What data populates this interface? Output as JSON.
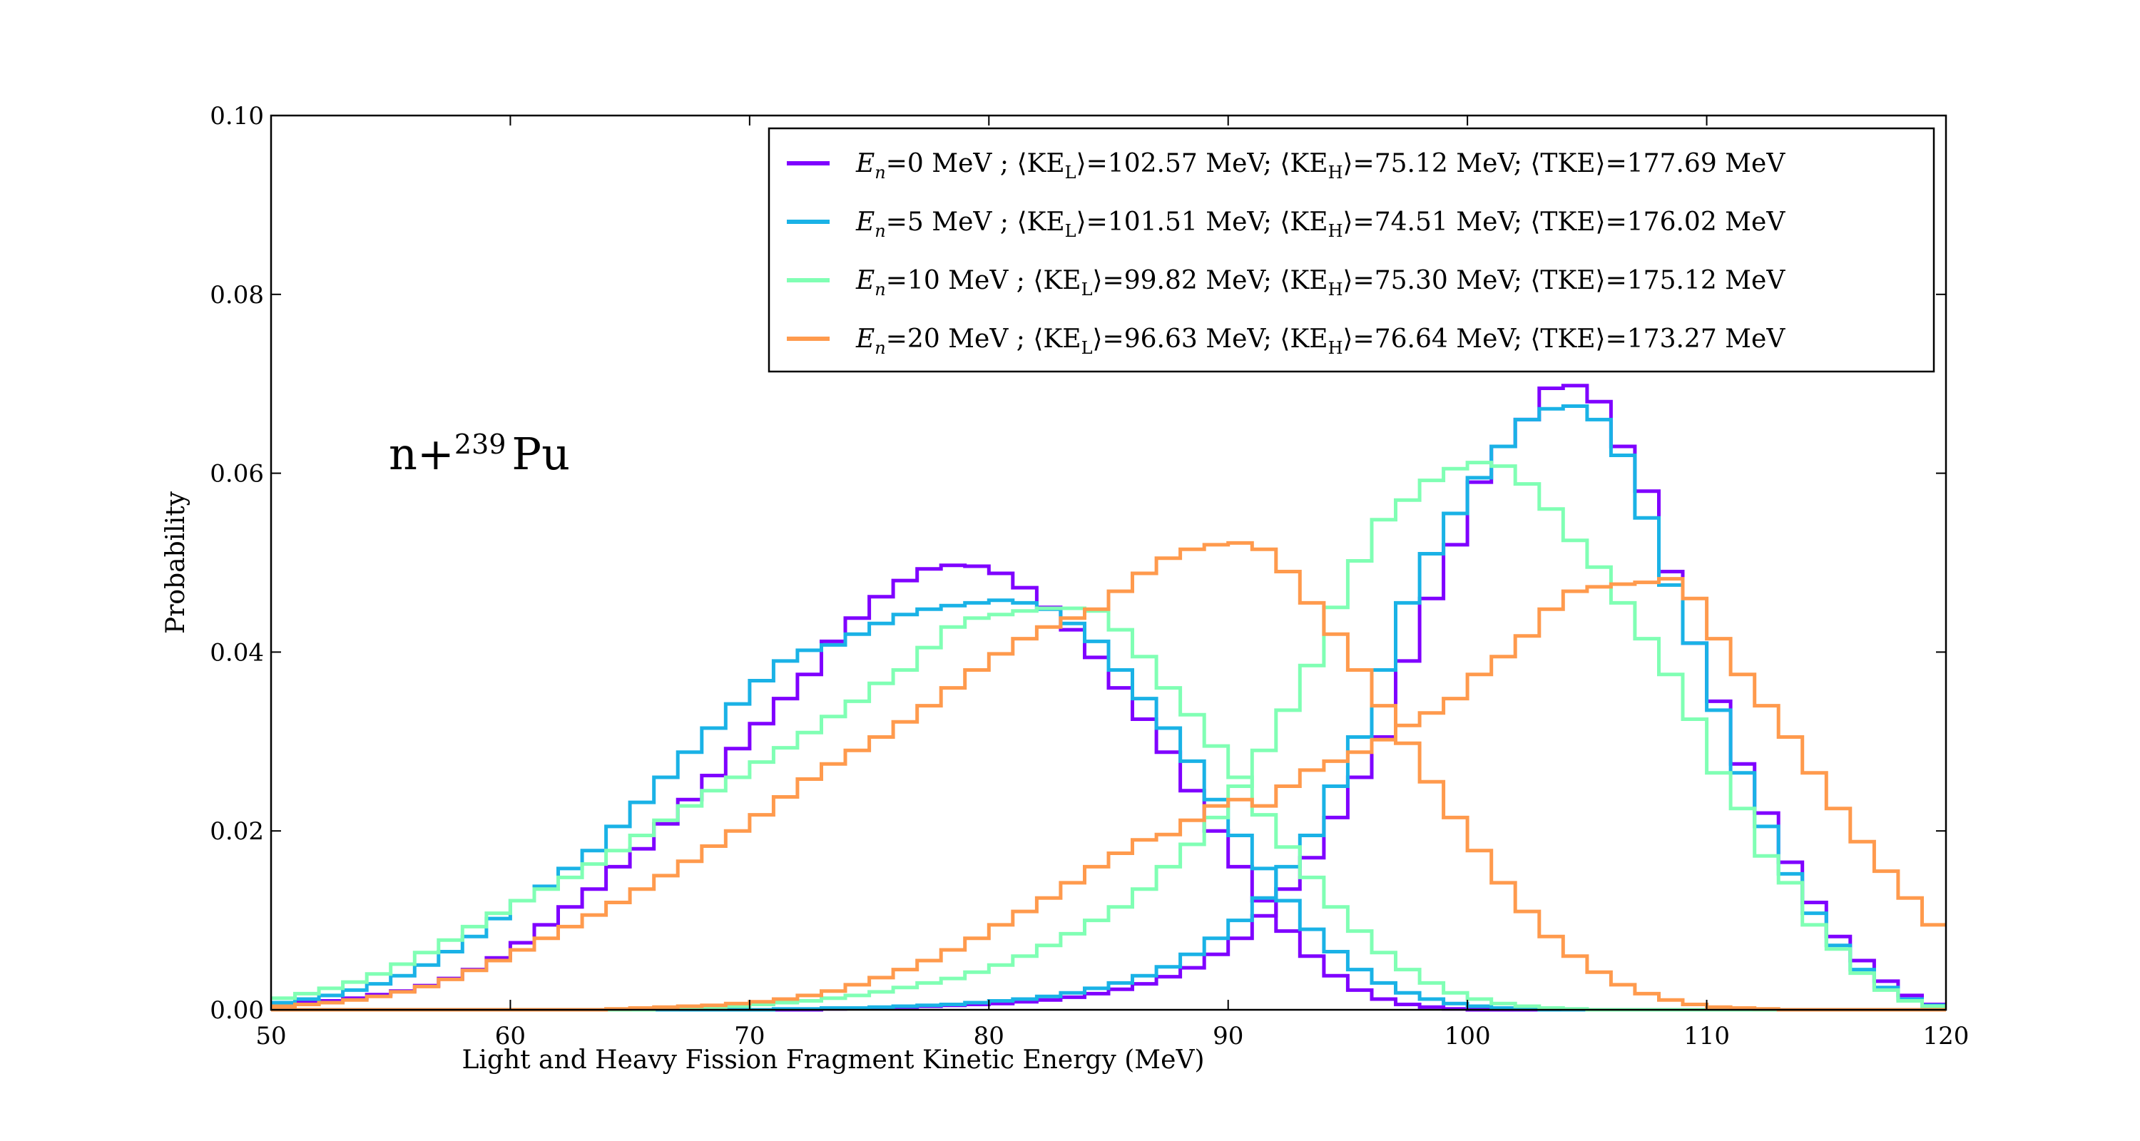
{
  "chart_data": {
    "type": "line",
    "step": true,
    "xlabel": "Light and Heavy Fission Fragment Kinetic Energy (MeV)",
    "ylabel": "Probability",
    "xlim": [
      50,
      120
    ],
    "ylim": [
      0.0,
      0.1
    ],
    "xticks": [
      "50",
      "60",
      "70",
      "80",
      "90",
      "100",
      "110",
      "120"
    ],
    "yticks": [
      "0.00",
      "0.02",
      "0.04",
      "0.06",
      "0.08",
      "0.10"
    ],
    "grid": false,
    "legend_position": "top-right",
    "annotation": {
      "base": "n+",
      "sup": "239",
      "element": "Pu"
    },
    "bin_width": 1,
    "bin_start": 50,
    "series": [
      {
        "name": "E_n=0 MeV ; ⟨KE_L⟩=102.57 MeV; ⟨KE_H⟩=75.12 MeV; ⟨TKE⟩=177.69 MeV",
        "legend": {
          "a": "=0 MeV ; ",
          "b": "=102.57 MeV; ",
          "c": "=75.12 MeV; ",
          "d": "=177.69 MeV"
        },
        "color": "#7f00ff",
        "light": [
          0.0005,
          0.0008,
          0.001,
          0.0013,
          0.0017,
          0.0021,
          0.0027,
          0.0035,
          0.0045,
          0.0058,
          0.0075,
          0.0095,
          0.0115,
          0.0135,
          0.016,
          0.018,
          0.0208,
          0.0235,
          0.0262,
          0.0292,
          0.032,
          0.0348,
          0.0375,
          0.0412,
          0.0438,
          0.0462,
          0.048,
          0.0493,
          0.0497,
          0.0496,
          0.0488,
          0.0472,
          0.045,
          0.0425,
          0.0394,
          0.036,
          0.0325,
          0.0288,
          0.0245,
          0.02,
          0.016,
          0.0122,
          0.0088,
          0.006,
          0.0038,
          0.0022,
          0.0012,
          0.0006,
          0.0003,
          0.0001,
          0,
          0,
          0,
          0,
          0,
          0,
          0,
          0,
          0,
          0,
          0,
          0,
          0,
          0,
          0,
          0,
          0,
          0,
          0,
          0
        ],
        "heavy": [
          0,
          0,
          0,
          0,
          0,
          0,
          0,
          0,
          0,
          0,
          0,
          0,
          0,
          0,
          0,
          0,
          0,
          0,
          0,
          0,
          0,
          0,
          0,
          0.0001,
          0.0002,
          0.0002,
          0.0003,
          0.0004,
          0.0005,
          0.0006,
          0.0007,
          0.0009,
          0.0011,
          0.0014,
          0.0018,
          0.0023,
          0.0029,
          0.0037,
          0.0047,
          0.0062,
          0.008,
          0.0105,
          0.0135,
          0.017,
          0.0215,
          0.026,
          0.0305,
          0.039,
          0.046,
          0.052,
          0.059,
          0.063,
          0.066,
          0.0695,
          0.0698,
          0.068,
          0.063,
          0.058,
          0.049,
          0.041,
          0.0345,
          0.0275,
          0.022,
          0.0165,
          0.012,
          0.0082,
          0.0055,
          0.0032,
          0.0016,
          0.0006
        ]
      },
      {
        "name": "E_n=5 MeV ; ⟨KE_L⟩=101.51 MeV; ⟨KE_H⟩=74.51 MeV; ⟨TKE⟩=176.02 MeV",
        "legend": {
          "a": "=5 MeV ; ",
          "b": "=101.51 MeV; ",
          "c": "=74.51 MeV; ",
          "d": "=176.02 MeV"
        },
        "color": "#1ab2e6",
        "light": [
          0.0008,
          0.0012,
          0.0016,
          0.0022,
          0.0029,
          0.0038,
          0.005,
          0.0065,
          0.0082,
          0.0102,
          0.0122,
          0.0138,
          0.0158,
          0.0178,
          0.0205,
          0.0232,
          0.026,
          0.0288,
          0.0315,
          0.0342,
          0.0368,
          0.039,
          0.0402,
          0.0408,
          0.042,
          0.0432,
          0.0442,
          0.0448,
          0.0452,
          0.0455,
          0.0458,
          0.0455,
          0.0448,
          0.0432,
          0.0412,
          0.038,
          0.0348,
          0.0315,
          0.0278,
          0.0235,
          0.0195,
          0.0158,
          0.0122,
          0.009,
          0.0065,
          0.0045,
          0.003,
          0.0019,
          0.0012,
          0.0007,
          0.0004,
          0.0002,
          0.0001,
          0,
          0,
          0,
          0,
          0,
          0,
          0,
          0,
          0,
          0,
          0,
          0,
          0,
          0,
          0,
          0,
          0
        ],
        "heavy": [
          0,
          0,
          0,
          0,
          0,
          0,
          0,
          0,
          0,
          0,
          0,
          0,
          0,
          0,
          0,
          0,
          0,
          0,
          0,
          0,
          0,
          0.0001,
          0.0001,
          0.0002,
          0.0002,
          0.0003,
          0.0004,
          0.0005,
          0.0006,
          0.0008,
          0.001,
          0.0012,
          0.0015,
          0.0019,
          0.0024,
          0.003,
          0.0038,
          0.0048,
          0.0062,
          0.008,
          0.01,
          0.0125,
          0.016,
          0.0195,
          0.025,
          0.0305,
          0.038,
          0.0455,
          0.051,
          0.0555,
          0.0595,
          0.063,
          0.066,
          0.0672,
          0.0675,
          0.066,
          0.062,
          0.055,
          0.0475,
          0.041,
          0.0335,
          0.0265,
          0.0205,
          0.0152,
          0.0108,
          0.0072,
          0.0045,
          0.0025,
          0.0012,
          0.0005
        ]
      },
      {
        "name": "E_n=10 MeV ; ⟨KE_L⟩=99.82 MeV; ⟨KE_H⟩=75.30 MeV; ⟨TKE⟩=175.12 MeV",
        "legend": {
          "a": "=10 MeV ; ",
          "b": "=99.82 MeV; ",
          "c": "=75.30 MeV; ",
          "d": "=175.12 MeV"
        },
        "color": "#80ffb4",
        "light": [
          0.0013,
          0.0018,
          0.0024,
          0.0031,
          0.004,
          0.0051,
          0.0064,
          0.0078,
          0.0093,
          0.0108,
          0.0122,
          0.0135,
          0.0148,
          0.0163,
          0.0178,
          0.0195,
          0.0212,
          0.0228,
          0.0245,
          0.026,
          0.0277,
          0.0293,
          0.031,
          0.0328,
          0.0345,
          0.0365,
          0.038,
          0.0405,
          0.0428,
          0.0438,
          0.0442,
          0.0446,
          0.0449,
          0.0449,
          0.0446,
          0.0425,
          0.0395,
          0.036,
          0.033,
          0.0295,
          0.026,
          0.0218,
          0.0182,
          0.0148,
          0.0115,
          0.0088,
          0.0064,
          0.0045,
          0.003,
          0.0019,
          0.0012,
          0.0007,
          0.0004,
          0.0002,
          0.0001,
          0,
          0,
          0,
          0,
          0,
          0,
          0,
          0,
          0,
          0,
          0,
          0,
          0,
          0,
          0
        ],
        "heavy": [
          0,
          0,
          0,
          0,
          0,
          0,
          0,
          0,
          0,
          0,
          0,
          0,
          0,
          0,
          0,
          0,
          0.0001,
          0.0002,
          0.0003,
          0.0004,
          0.0006,
          0.0008,
          0.001,
          0.0013,
          0.0016,
          0.002,
          0.0025,
          0.003,
          0.0035,
          0.0042,
          0.005,
          0.006,
          0.0072,
          0.0085,
          0.01,
          0.0115,
          0.0135,
          0.016,
          0.0185,
          0.0215,
          0.025,
          0.029,
          0.0335,
          0.0385,
          0.045,
          0.0502,
          0.0548,
          0.057,
          0.0592,
          0.0605,
          0.0612,
          0.0608,
          0.0588,
          0.056,
          0.0525,
          0.0495,
          0.0455,
          0.0415,
          0.0375,
          0.0325,
          0.0265,
          0.0225,
          0.0172,
          0.0142,
          0.0095,
          0.0068,
          0.0041,
          0.0022,
          0.001,
          0.0004
        ]
      },
      {
        "name": "E_n=20 MeV ; ⟨KE_L⟩=96.63 MeV; ⟨KE_H⟩=76.64 MeV; ⟨TKE⟩=173.27 MeV",
        "legend": {
          "a": "=20 MeV ; ",
          "b": "=96.63 MeV; ",
          "c": "=76.64 MeV; ",
          "d": "=173.27 MeV"
        },
        "color": "#ff9a4d",
        "light": [
          0.0004,
          0.0006,
          0.0008,
          0.0011,
          0.0015,
          0.002,
          0.0026,
          0.0034,
          0.0044,
          0.0055,
          0.0067,
          0.008,
          0.0093,
          0.0106,
          0.012,
          0.0135,
          0.015,
          0.0166,
          0.0183,
          0.02,
          0.0218,
          0.0238,
          0.0258,
          0.0275,
          0.029,
          0.0305,
          0.0322,
          0.034,
          0.036,
          0.038,
          0.0398,
          0.0415,
          0.0428,
          0.0438,
          0.0448,
          0.0468,
          0.0488,
          0.0505,
          0.0515,
          0.052,
          0.0522,
          0.0515,
          0.049,
          0.0455,
          0.042,
          0.038,
          0.034,
          0.0298,
          0.0255,
          0.0215,
          0.0178,
          0.0142,
          0.011,
          0.0082,
          0.006,
          0.0042,
          0.0028,
          0.0018,
          0.0011,
          0.0006,
          0.0003,
          0.0002,
          0.0001,
          0,
          0,
          0,
          0,
          0,
          0,
          0
        ],
        "heavy": [
          0,
          0,
          0,
          0,
          0,
          0,
          0,
          0,
          0,
          0,
          0,
          0,
          0,
          0,
          0.0001,
          0.0002,
          0.0003,
          0.0004,
          0.0005,
          0.0007,
          0.0009,
          0.0012,
          0.0016,
          0.0021,
          0.0028,
          0.0036,
          0.0045,
          0.0055,
          0.0067,
          0.008,
          0.0095,
          0.011,
          0.0125,
          0.0142,
          0.016,
          0.0175,
          0.019,
          0.0196,
          0.0212,
          0.0228,
          0.0235,
          0.0228,
          0.025,
          0.0268,
          0.0278,
          0.0288,
          0.0302,
          0.0318,
          0.0332,
          0.0348,
          0.0375,
          0.0395,
          0.0418,
          0.0448,
          0.0468,
          0.0473,
          0.0476,
          0.0478,
          0.0482,
          0.046,
          0.0415,
          0.0375,
          0.034,
          0.0305,
          0.0265,
          0.0225,
          0.0188,
          0.0155,
          0.0125,
          0.0095
        ]
      }
    ]
  }
}
